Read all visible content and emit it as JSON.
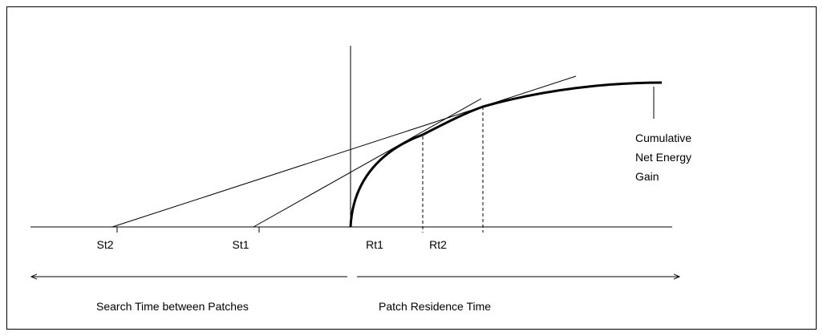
{
  "axis_labels": {
    "st2": "St2",
    "st1": "St1",
    "rt1": "Rt1",
    "rt2": "Rt2"
  },
  "curve_label": [
    "Cumulative",
    "Net Energy",
    "Gain"
  ],
  "intervals": {
    "search": "Search Time between Patches",
    "residence": "Patch Residence Time"
  }
}
